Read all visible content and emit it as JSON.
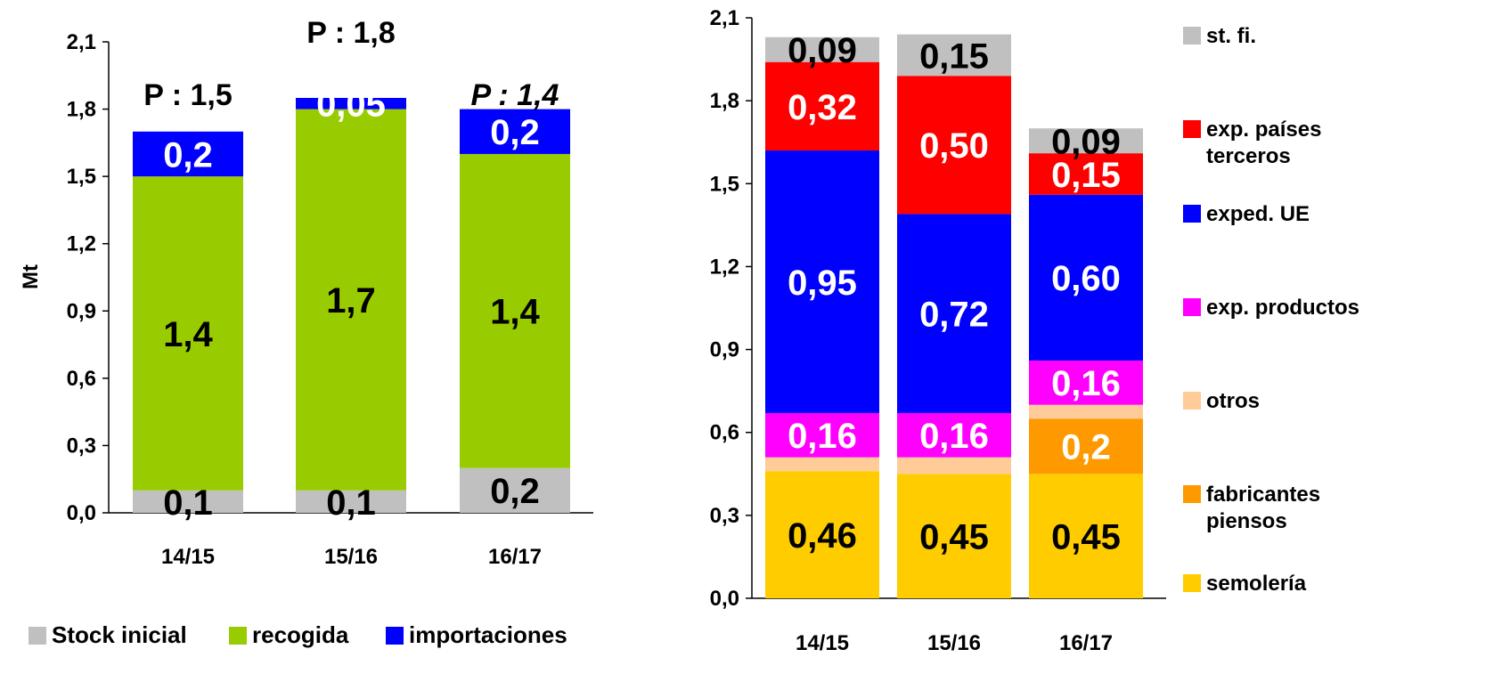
{
  "chart_data": [
    {
      "type": "bar",
      "stacked": true,
      "ylabel": "Mt",
      "ylim": [
        0,
        2.1
      ],
      "y_ticks": [
        "0,0",
        "0,3",
        "0,6",
        "0,9",
        "1,2",
        "1,5",
        "1,8",
        "2,1"
      ],
      "y_tick_values": [
        0,
        0.3,
        0.6,
        0.9,
        1.2,
        1.5,
        1.8,
        2.1
      ],
      "categories": [
        "14/15",
        "15/16",
        "16/17"
      ],
      "top_annotations": [
        {
          "text": "P : 1,5",
          "italic": false
        },
        {
          "text": "P : 1,8",
          "italic": false
        },
        {
          "text": "P : 1,4",
          "italic": true
        }
      ],
      "legend_position": "bottom",
      "series": [
        {
          "name": "Stock inicial",
          "color": "#C0C0C0",
          "values": [
            0.1,
            0.1,
            0.2
          ],
          "labels": [
            "0,1",
            "0,1",
            "0,2"
          ],
          "label_color": "#000000"
        },
        {
          "name": "recogida",
          "color": "#99CC00",
          "values": [
            1.4,
            1.7,
            1.4
          ],
          "labels": [
            "1,4",
            "1,7",
            "1,4"
          ],
          "label_color": "#000000"
        },
        {
          "name": "importaciones",
          "color": "#0000FF",
          "values": [
            0.2,
            0.05,
            0.2
          ],
          "labels": [
            "0,2",
            "0,05",
            "0,2"
          ],
          "label_color": "#FFFFFF"
        }
      ]
    },
    {
      "type": "bar",
      "stacked": true,
      "ylim": [
        0,
        2.1
      ],
      "y_ticks": [
        "0,0",
        "0,3",
        "0,6",
        "0,9",
        "1,2",
        "1,5",
        "1,8",
        "2,1"
      ],
      "y_tick_values": [
        0,
        0.3,
        0.6,
        0.9,
        1.2,
        1.5,
        1.8,
        2.1
      ],
      "categories": [
        "14/15",
        "15/16",
        "16/17"
      ],
      "legend_position": "right",
      "series": [
        {
          "name": "semolería",
          "color": "#FFCC00",
          "values": [
            0.46,
            0.45,
            0.45
          ],
          "labels": [
            "0,46",
            "0,45",
            "0,45"
          ],
          "label_color": "#000000"
        },
        {
          "name": "fabricantes piensos",
          "color": "#FF9900",
          "values": [
            0,
            0,
            0.2
          ],
          "labels": [
            "",
            "",
            "0,2"
          ],
          "label_color": "#FFFFFF"
        },
        {
          "name": "otros",
          "color": "#FFCC99",
          "values": [
            0.05,
            0.06,
            0.05
          ],
          "labels": [
            "",
            "",
            ""
          ],
          "label_color": "#000000"
        },
        {
          "name": "exp. productos",
          "color": "#FF00FF",
          "values": [
            0.16,
            0.16,
            0.16
          ],
          "labels": [
            "0,16",
            "0,16",
            "0,16"
          ],
          "label_color": "#FFFFFF"
        },
        {
          "name": "exped. UE",
          "color": "#0000FF",
          "values": [
            0.95,
            0.72,
            0.6
          ],
          "labels": [
            "0,95",
            "0,72",
            "0,60"
          ],
          "label_color": "#FFFFFF"
        },
        {
          "name": "exp. países terceros",
          "color": "#FF0000",
          "values": [
            0.32,
            0.5,
            0.15
          ],
          "labels": [
            "0,32",
            "0,50",
            "0,15"
          ],
          "label_color": "#FFFFFF"
        },
        {
          "name": "st. fi.",
          "color": "#C0C0C0",
          "values": [
            0.09,
            0.15,
            0.09
          ],
          "labels": [
            "0,09",
            "0,15",
            "0,09"
          ],
          "label_color": "#000000"
        }
      ],
      "legend_order": [
        "st. fi.",
        "exp. países terceros",
        "exped. UE",
        "exp. productos",
        "otros",
        "fabricantes piensos",
        "semolería"
      ]
    }
  ]
}
